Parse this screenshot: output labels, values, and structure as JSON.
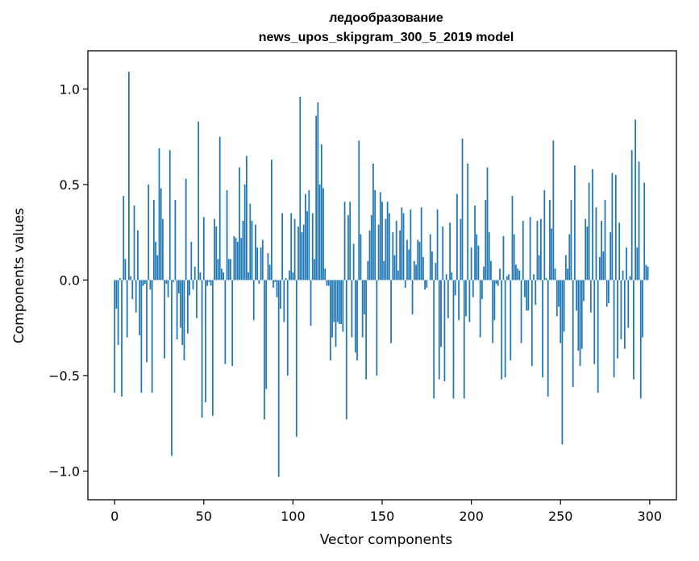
{
  "chart_data": {
    "type": "bar",
    "title": "ледообразование",
    "subtitle": "news_upos_skipgram_300_5_2019 model",
    "xlabel": "Vector components",
    "ylabel": "Components values",
    "xlim": [
      -15,
      315
    ],
    "ylim": [
      -1.15,
      1.2
    ],
    "xticks": [
      0,
      50,
      100,
      150,
      200,
      250,
      300
    ],
    "yticks": [
      -1.0,
      -0.5,
      0.0,
      0.5,
      1.0
    ],
    "ytick_labels": [
      "−1.0",
      "−0.5",
      "0.0",
      "0.5",
      "1.0"
    ],
    "bar_color": "#1f77b4",
    "grid": false,
    "legend": "none",
    "x": "0..299",
    "values": [
      -0.59,
      -0.15,
      -0.34,
      0.01,
      -0.61,
      0.44,
      0.11,
      -0.3,
      1.09,
      0.02,
      -0.1,
      0.39,
      -0.17,
      0.26,
      -0.29,
      -0.59,
      -0.03,
      -0.02,
      -0.43,
      0.5,
      -0.05,
      -0.59,
      0.42,
      0.2,
      0.13,
      0.69,
      0.48,
      0.32,
      -0.41,
      -0.02,
      -0.09,
      0.68,
      -0.92,
      -0.01,
      0.42,
      -0.31,
      -0.07,
      -0.25,
      -0.34,
      -0.42,
      0.53,
      -0.28,
      -0.08,
      0.2,
      -0.05,
      0.07,
      -0.2,
      0.83,
      0.04,
      -0.72,
      0.33,
      -0.64,
      -0.03,
      -0.01,
      -0.03,
      -0.71,
      0.32,
      0.28,
      0.11,
      0.75,
      0.06,
      0.04,
      -0.44,
      0.47,
      0.11,
      0.11,
      -0.45,
      0.23,
      0.22,
      0.2,
      0.59,
      0.22,
      0.31,
      0.5,
      0.65,
      0.04,
      0.4,
      0.31,
      -0.21,
      0.29,
      0.17,
      -0.02,
      0.17,
      0.21,
      -0.73,
      -0.57,
      0.14,
      0.08,
      0.63,
      -0.04,
      -0.01,
      -0.09,
      -1.03,
      -0.15,
      0.35,
      -0.22,
      0.01,
      -0.5,
      0.05,
      0.35,
      0.04,
      0.32,
      -0.82,
      0.28,
      0.96,
      0.25,
      0.29,
      0.45,
      0.36,
      0.47,
      -0.24,
      0.35,
      0.11,
      0.86,
      0.93,
      0.5,
      0.71,
      0.48,
      0.06,
      -0.03,
      -0.03,
      -0.42,
      -0.3,
      -0.22,
      -0.35,
      -0.22,
      -0.23,
      -0.23,
      -0.27,
      0.41,
      -0.73,
      0.34,
      0.41,
      -0.3,
      0.19,
      -0.38,
      -0.42,
      0.73,
      0.24,
      -0.3,
      -0.18,
      -0.52,
      0.1,
      0.26,
      0.34,
      0.61,
      0.47,
      -0.5,
      0.29,
      0.46,
      0.41,
      0.1,
      0.32,
      0.41,
      0.35,
      -0.33,
      0.25,
      0.13,
      0.31,
      0.05,
      0.26,
      0.38,
      0.35,
      -0.04,
      0.21,
      0.16,
      0.37,
      -0.18,
      0.1,
      0.08,
      0.21,
      0.2,
      0.38,
      0.12,
      -0.05,
      -0.04,
      0.0,
      0.24,
      0.15,
      -0.62,
      0.09,
      0.37,
      -0.52,
      -0.35,
      0.28,
      -0.53,
      0.03,
      -0.2,
      0.3,
      0.04,
      -0.62,
      -0.08,
      0.45,
      -0.21,
      0.32,
      0.74,
      -0.62,
      -0.19,
      0.61,
      -0.22,
      0.17,
      -0.09,
      0.39,
      0.24,
      0.18,
      -0.3,
      -0.1,
      0.07,
      0.42,
      0.59,
      0.25,
      0.1,
      -0.33,
      -0.21,
      -0.02,
      -0.03,
      0.06,
      -0.52,
      0.23,
      -0.51,
      0.02,
      0.03,
      -0.42,
      0.44,
      0.24,
      0.08,
      0.06,
      0.05,
      -0.33,
      0.31,
      -0.09,
      -0.16,
      -0.16,
      0.33,
      -0.45,
      0.03,
      -0.13,
      0.31,
      0.13,
      0.32,
      -0.51,
      0.47,
      0.01,
      -0.61,
      0.42,
      0.27,
      0.73,
      0.06,
      -0.19,
      -0.14,
      -0.33,
      -0.86,
      -0.27,
      0.13,
      0.06,
      0.24,
      0.42,
      -0.56,
      0.6,
      -0.16,
      -0.37,
      -0.45,
      -0.36,
      -0.11,
      0.32,
      0.28,
      0.51,
      -0.17,
      0.58,
      -0.44,
      0.38,
      -0.59,
      0.12,
      0.31,
      0.15,
      0.42,
      -0.14,
      -0.12,
      0.25,
      0.56,
      -0.51,
      0.55,
      -0.41,
      0.3,
      -0.31,
      0.05,
      -0.36,
      0.17,
      -0.25,
      0.02,
      0.68,
      -0.52,
      0.84,
      0.17,
      0.62,
      -0.62,
      -0.3,
      0.51,
      0.08,
      0.07
    ]
  }
}
